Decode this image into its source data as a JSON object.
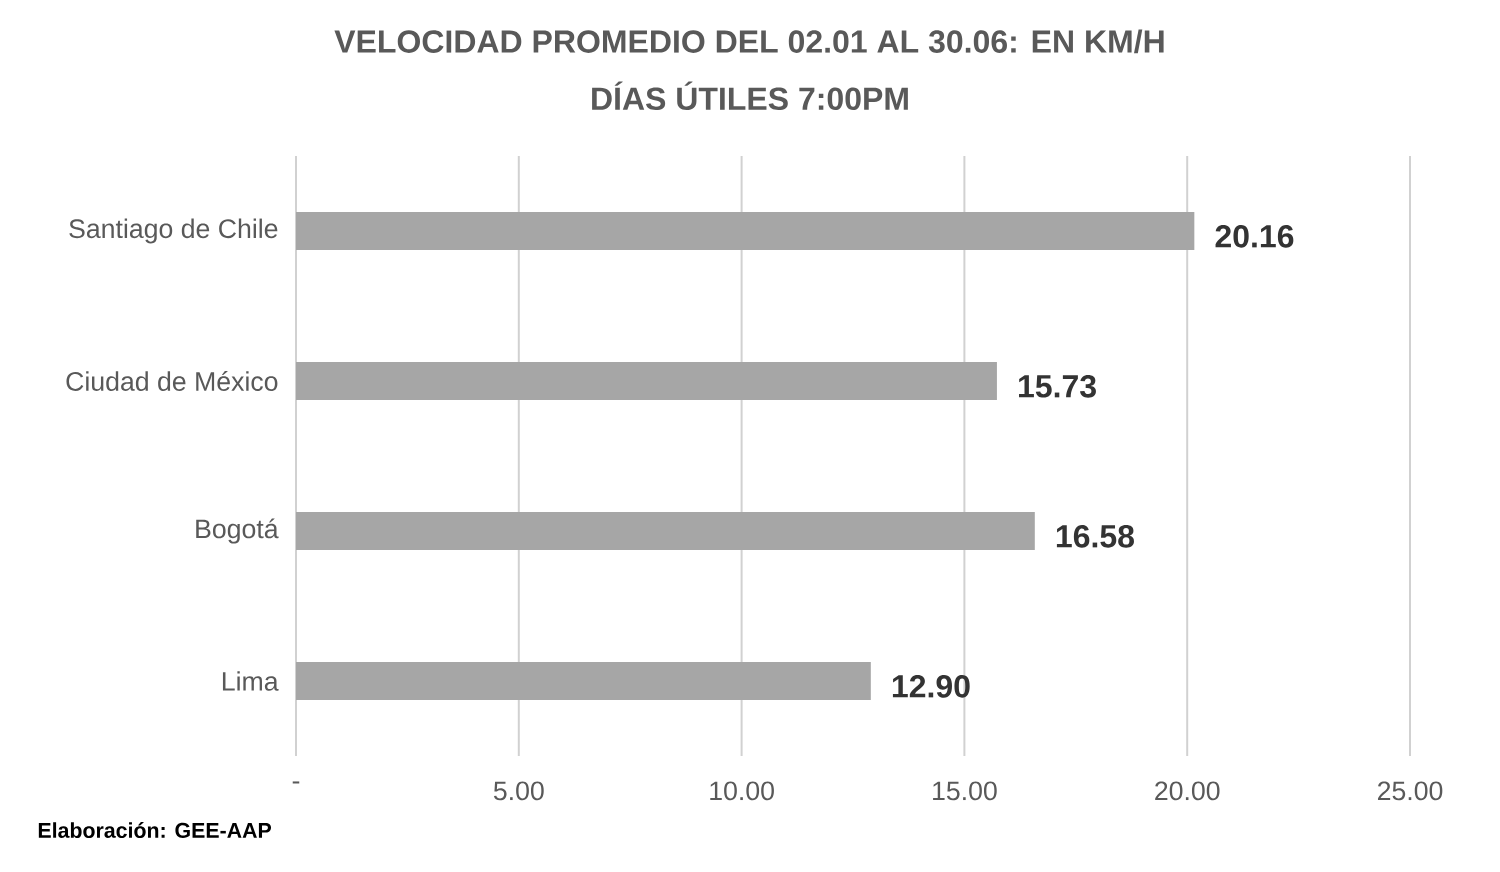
{
  "chart_data": {
    "type": "bar",
    "orientation": "horizontal",
    "title": "VELOCIDAD PROMEDIO DEL 02.01 AL 30.06: EN KM/H",
    "subtitle": "DÍAS ÚTILES 7:00PM",
    "categories": [
      "Santiago de Chile",
      "Ciudad de México",
      "Bogotá",
      "Lima"
    ],
    "values": [
      20.16,
      15.73,
      16.58,
      12.9
    ],
    "value_labels": [
      "20.16",
      "15.73",
      "16.58",
      "12.90"
    ],
    "color": "#a6a6a6",
    "xlim": [
      0,
      25
    ],
    "xticks": [
      {
        "value": 0,
        "label": "-"
      },
      {
        "value": 5,
        "label": "5.00"
      },
      {
        "value": 10,
        "label": "10.00"
      },
      {
        "value": 15,
        "label": "15.00"
      },
      {
        "value": 20,
        "label": "20.00"
      },
      {
        "value": 25,
        "label": "25.00"
      }
    ],
    "grid": "x",
    "annotations": [
      "Elaboración: GEE-AAP"
    ]
  }
}
